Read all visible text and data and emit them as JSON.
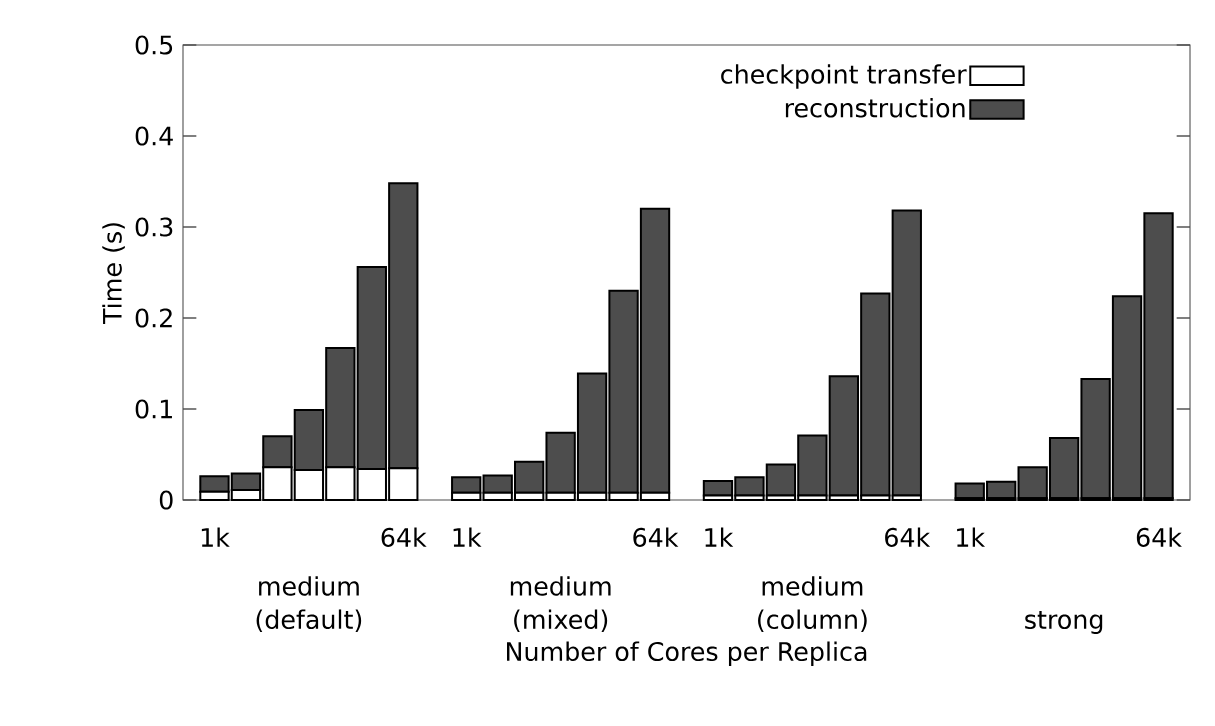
{
  "chart_data": {
    "type": "bar",
    "stacked": true,
    "xlabel": "Number of Cores per Replica",
    "ylabel": "Time (s)",
    "categories": [
      "1k",
      null,
      null,
      null,
      null,
      null,
      "64k",
      null,
      "1k",
      null,
      null,
      null,
      null,
      null,
      "64k",
      null,
      "1k",
      null,
      null,
      null,
      null,
      null,
      "64k",
      null,
      "1k",
      null,
      null,
      null,
      null,
      null,
      "64k"
    ],
    "series": [
      {
        "name": "checkpoint transfer",
        "color": "#ffffff",
        "values": [
          0.009,
          0.011,
          0.036,
          0.033,
          0.036,
          0.034,
          0.035,
          null,
          0.008,
          0.008,
          0.008,
          0.008,
          0.008,
          0.008,
          0.008,
          null,
          0.005,
          0.005,
          0.005,
          0.005,
          0.005,
          0.005,
          0.005,
          null,
          0.002,
          0.002,
          0.002,
          0.002,
          0.002,
          0.002,
          0.002
        ]
      },
      {
        "name": "reconstruction",
        "color": "#4d4d4d",
        "values": [
          0.017,
          0.018,
          0.034,
          0.066,
          0.131,
          0.222,
          0.313,
          null,
          0.017,
          0.019,
          0.034,
          0.066,
          0.131,
          0.222,
          0.312,
          null,
          0.016,
          0.02,
          0.034,
          0.066,
          0.131,
          0.222,
          0.313,
          null,
          0.016,
          0.018,
          0.034,
          0.066,
          0.131,
          0.222,
          0.313
        ]
      }
    ],
    "ylim": [
      0,
      0.5
    ],
    "yticks": [
      0,
      0.1,
      0.2,
      0.3,
      0.4,
      0.5
    ],
    "legend": "top right",
    "annotations": [
      "medium (default)",
      "medium (mixed)",
      "medium (column)",
      "strong"
    ]
  }
}
